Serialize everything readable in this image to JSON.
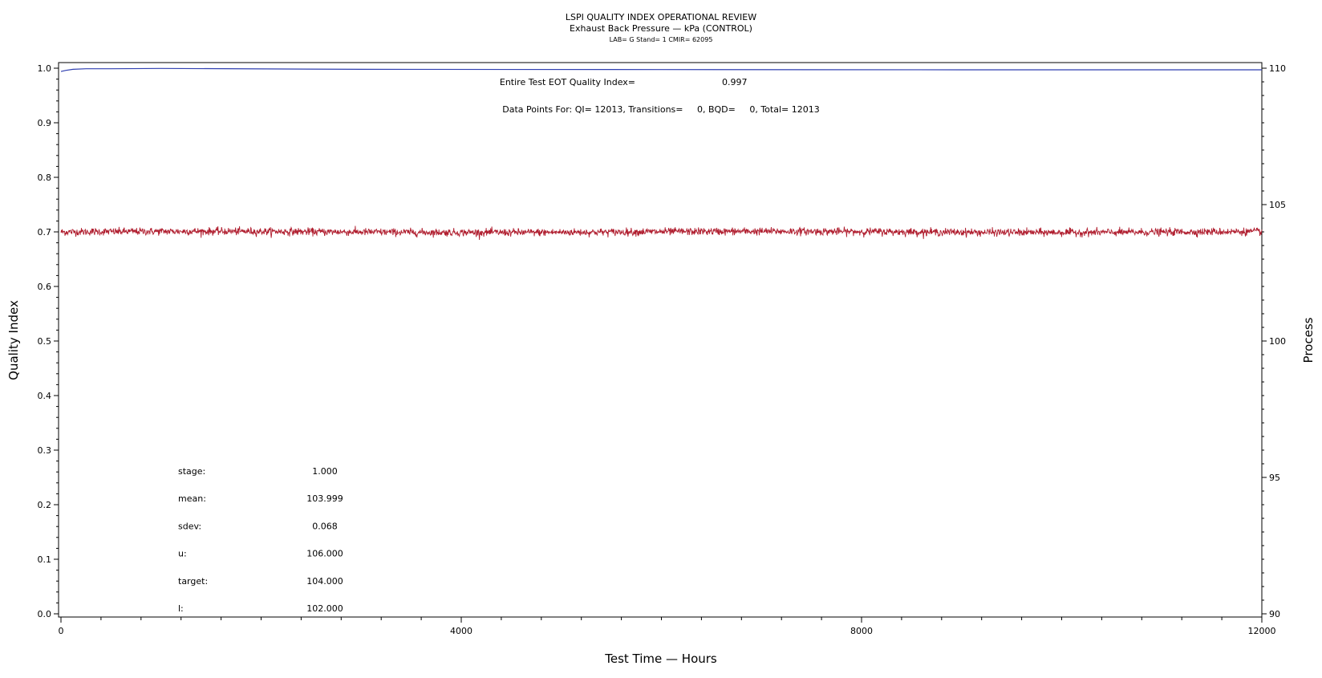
{
  "chart_data": {
    "type": "line",
    "title": "LSPI QUALITY INDEX OPERATIONAL REVIEW",
    "subtitle": "Exhaust Back Pressure — kPa (CONTROL)",
    "subtitle2": "LAB= G Stand= 1 CMIR= 62095",
    "xlabel": "Test Time — Hours",
    "ylabel_left": "Quality Index",
    "ylabel_right": "Process",
    "xlim": [
      0,
      12000
    ],
    "ylim_left": [
      0.0,
      1.0
    ],
    "ylim_right": [
      90,
      110
    ],
    "x_ticks": [
      0,
      4000,
      8000,
      12000
    ],
    "y_ticks_left": [
      0.0,
      0.1,
      0.2,
      0.3,
      0.4,
      0.5,
      0.6,
      0.7,
      0.8,
      0.9,
      1.0
    ],
    "y_ticks_right": [
      90,
      95,
      100,
      105,
      110
    ],
    "annotations": {
      "eot_label": "Entire Test EOT Quality Index=",
      "eot_value": "0.997",
      "data_points": "Data Points For: QI= 12013, Transitions=     0, BQD=     0, Total= 12013"
    },
    "series": [
      {
        "axis": "left",
        "color": "#2f3fb0",
        "points": [
          [
            0,
            0.994
          ],
          [
            50,
            0.996
          ],
          [
            120,
            0.998
          ],
          [
            250,
            0.999
          ],
          [
            500,
            0.999
          ],
          [
            1000,
            0.9995
          ],
          [
            3000,
            0.998
          ],
          [
            6000,
            0.9975
          ],
          [
            9000,
            0.997
          ],
          [
            12000,
            0.997
          ]
        ]
      },
      {
        "axis": "right",
        "color": "#b01e2f",
        "mean": 103.999,
        "sdev": 0.068,
        "n_points": 12013,
        "x_range": [
          0,
          12000
        ]
      }
    ],
    "stats": [
      {
        "label": "stage:",
        "value": "1.000"
      },
      {
        "label": "mean:",
        "value": "103.999"
      },
      {
        "label": "sdev:",
        "value": "0.068"
      },
      {
        "label": "u:",
        "value": "106.000"
      },
      {
        "label": "target:",
        "value": "104.000"
      },
      {
        "label": "l:",
        "value": "102.000"
      }
    ]
  }
}
